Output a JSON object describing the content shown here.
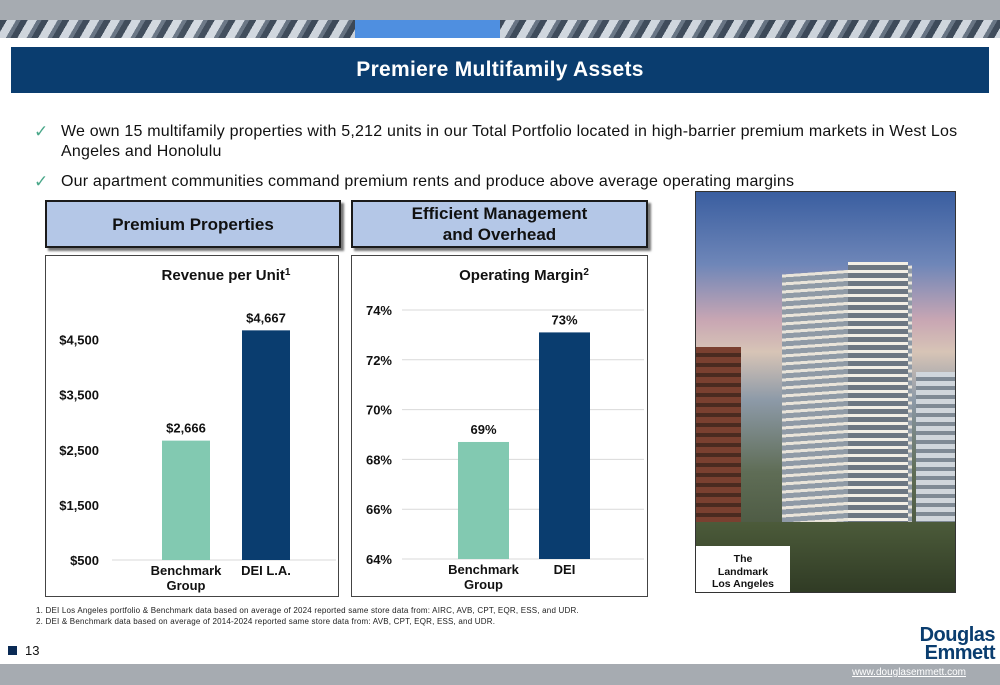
{
  "title": "Premiere Multifamily Assets",
  "bullets": [
    "We own 15 multifamily properties with 5,212 units in our Total Portfolio located in high-barrier premium markets in West Los Angeles and Honolulu",
    "Our apartment communities command premium rents and produce above average operating margins"
  ],
  "headers": {
    "left": "Premium Properties",
    "middle_line1": "Efficient Management",
    "middle_line2": "and Overhead"
  },
  "photo_caption": [
    "The",
    "Landmark",
    "Los Angeles"
  ],
  "footnotes": [
    "1. DEI Los Angeles portfolio & Benchmark data based on average of 2024 reported same store data from: AIRC, AVB, CPT, EQR, ESS, and UDR.",
    "2. DEI & Benchmark data based on average of 2014-2024 reported same store data from: AVB, CPT, EQR, ESS, and UDR."
  ],
  "page_number": "13",
  "logo": [
    "Douglas",
    "Emmett"
  ],
  "url": "www.douglasemmett.com",
  "colors": {
    "navy": "#0a3d6f",
    "mint": "#82c9b1",
    "header_fill": "#b4c7e7"
  },
  "chart_data": [
    {
      "type": "bar",
      "title": "Revenue per Unit",
      "title_superscript": "1",
      "categories": [
        "Benchmark Group",
        "DEI L.A."
      ],
      "values": [
        2666,
        4667
      ],
      "value_labels": [
        "$2,666",
        "$4,667"
      ],
      "ylim": [
        500,
        5000
      ],
      "yticks": [
        500,
        1500,
        2500,
        3500,
        4500
      ],
      "ytick_labels": [
        "$500",
        "$1,500",
        "$2,500",
        "$3,500",
        "$4,500"
      ],
      "bar_colors": [
        "#82c9b1",
        "#0a3d6f"
      ],
      "grid": false
    },
    {
      "type": "bar",
      "title": "Operating Margin",
      "title_superscript": "2",
      "categories": [
        "Benchmark Group",
        "DEI"
      ],
      "values": [
        68.7,
        73.1
      ],
      "value_labels": [
        "69%",
        "73%"
      ],
      "ylim": [
        64,
        74
      ],
      "yticks": [
        64,
        66,
        68,
        70,
        72,
        74
      ],
      "ytick_labels": [
        "64%",
        "66%",
        "68%",
        "70%",
        "72%",
        "74%"
      ],
      "bar_colors": [
        "#82c9b1",
        "#0a3d6f"
      ],
      "grid": true
    }
  ]
}
